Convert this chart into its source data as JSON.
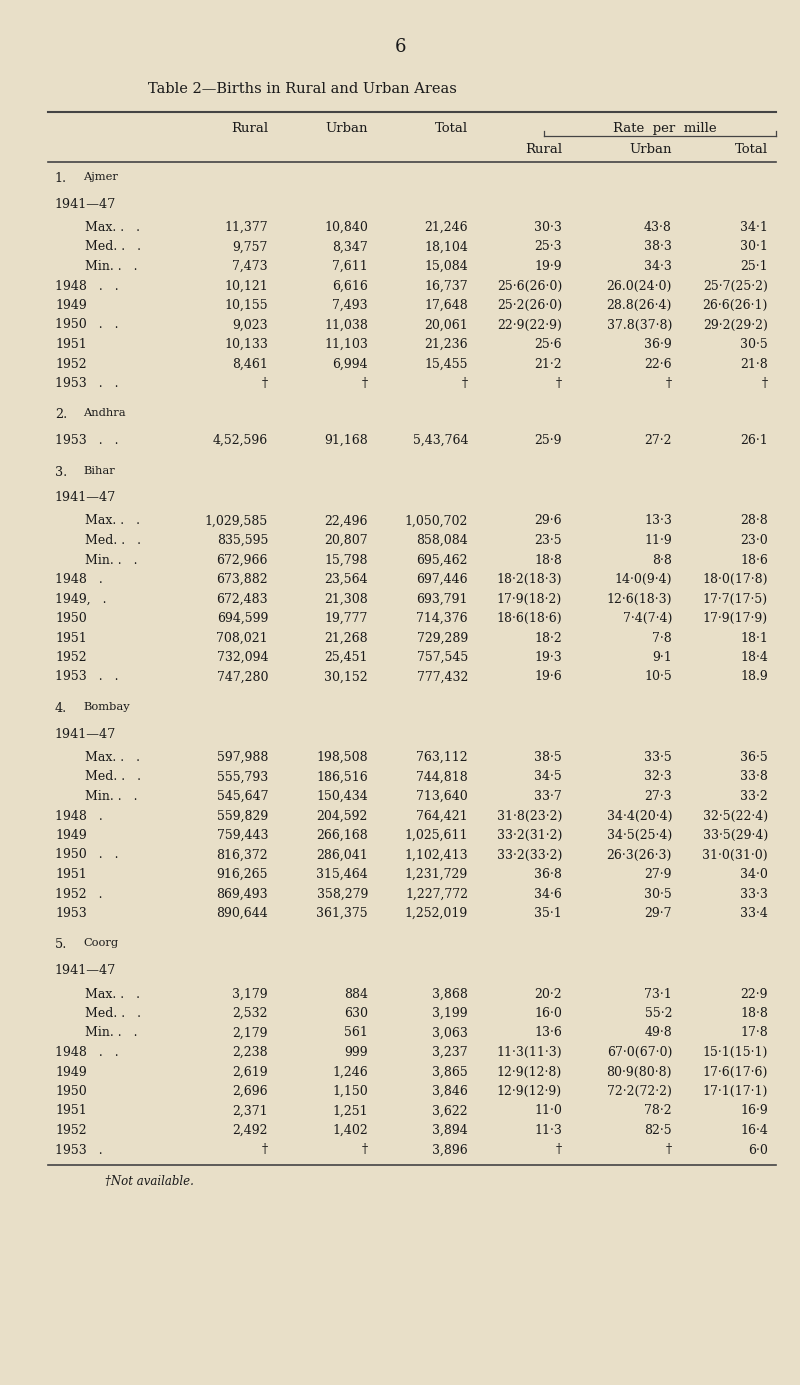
{
  "page_number": "6",
  "title": "Table 2—Births in Rural and Urban Areas",
  "bg_color": "#e8dfc8",
  "text_color": "#1a1a1a",
  "footnote": "†Not available.",
  "rows": [
    {
      "label": "1.  Ajmer",
      "type": "section"
    },
    {
      "label": "1941—47",
      "type": "subsection"
    },
    {
      "label": "Max. .   .",
      "type": "data",
      "indent": 1,
      "rural": "11,377",
      "urban": "10,840",
      "total": "21,246",
      "r_rural": "30·3",
      "r_urban": "43·8",
      "r_total": "34·1"
    },
    {
      "label": "Med. .   .",
      "type": "data",
      "indent": 1,
      "rural": "9,757",
      "urban": "8,347",
      "total": "18,104",
      "r_rural": "25·3",
      "r_urban": "38·3",
      "r_total": "30·1"
    },
    {
      "label": "Min. .   .",
      "type": "data",
      "indent": 1,
      "rural": "7,473",
      "urban": "7,611",
      "total": "15,084",
      "r_rural": "19·9",
      "r_urban": "34·3",
      "r_total": "25·1"
    },
    {
      "label": "1948   .   .",
      "type": "data",
      "indent": 0,
      "rural": "10,121",
      "urban": "6,616",
      "total": "16,737",
      "r_rural": "25·6(26·0)",
      "r_urban": "26.0(24·0)",
      "r_total": "25·7(25·2)"
    },
    {
      "label": "1949",
      "type": "data",
      "indent": 0,
      "rural": "10,155",
      "urban": "7,493",
      "total": "17,648",
      "r_rural": "25·2(26·0)",
      "r_urban": "28.8(26·4)",
      "r_total": "26·6(26·1)"
    },
    {
      "label": "1950   .   .",
      "type": "data",
      "indent": 0,
      "rural": "9,023",
      "urban": "11,038",
      "total": "20,061",
      "r_rural": "22·9(22·9)",
      "r_urban": "37.8(37·8)",
      "r_total": "29·2(29·2)"
    },
    {
      "label": "1951",
      "type": "data",
      "indent": 0,
      "rural": "10,133",
      "urban": "11,103",
      "total": "21,236",
      "r_rural": "25·6",
      "r_urban": "36·9",
      "r_total": "30·5"
    },
    {
      "label": "1952",
      "type": "data",
      "indent": 0,
      "rural": "8,461",
      "urban": "6,994",
      "total": "15,455",
      "r_rural": "21·2",
      "r_urban": "22·6",
      "r_total": "21·8"
    },
    {
      "label": "1953   .   .",
      "type": "data",
      "indent": 0,
      "rural": "†",
      "urban": "†",
      "total": "†",
      "r_rural": "†",
      "r_urban": "†",
      "r_total": "†"
    },
    {
      "label": "2.  Andhra",
      "type": "section"
    },
    {
      "label": "1953   .   .",
      "type": "data",
      "indent": 0,
      "rural": "4,52,596",
      "urban": "91,168",
      "total": "5,43,764",
      "r_rural": "25·9",
      "r_urban": "27·2",
      "r_total": "26·1"
    },
    {
      "label": "3.  Bihar",
      "type": "section"
    },
    {
      "label": "1941—47",
      "type": "subsection"
    },
    {
      "label": "Max. .   .",
      "type": "data",
      "indent": 1,
      "rural": "1,029,585",
      "urban": "22,496",
      "total": "1,050,702",
      "r_rural": "29·6",
      "r_urban": "13·3",
      "r_total": "28·8"
    },
    {
      "label": "Med. .   .",
      "type": "data",
      "indent": 1,
      "rural": "835,595",
      "urban": "20,807",
      "total": "858,084",
      "r_rural": "23·5",
      "r_urban": "11·9",
      "r_total": "23·0"
    },
    {
      "label": "Min. .   .",
      "type": "data",
      "indent": 1,
      "rural": "672,966",
      "urban": "15,798",
      "total": "695,462",
      "r_rural": "18·8",
      "r_urban": "8·8",
      "r_total": "18·6"
    },
    {
      "label": "1948   .",
      "type": "data",
      "indent": 0,
      "rural": "673,882",
      "urban": "23,564",
      "total": "697,446",
      "r_rural": "18·2(18·3)",
      "r_urban": "14·0(9·4)",
      "r_total": "18·0(17·8)"
    },
    {
      "label": "1949,   .",
      "type": "data",
      "indent": 0,
      "rural": "672,483",
      "urban": "21,308",
      "total": "693,791",
      "r_rural": "17·9(18·2)",
      "r_urban": "12·6(18·3)",
      "r_total": "17·7(17·5)"
    },
    {
      "label": "1950",
      "type": "data",
      "indent": 0,
      "rural": "694,599",
      "urban": "19,777",
      "total": "714,376",
      "r_rural": "18·6(18·6)",
      "r_urban": "7·4(7·4)",
      "r_total": "17·9(17·9)"
    },
    {
      "label": "1951",
      "type": "data",
      "indent": 0,
      "rural": "708,021",
      "urban": "21,268",
      "total": "729,289",
      "r_rural": "18·2",
      "r_urban": "7·8",
      "r_total": "18·1"
    },
    {
      "label": "1952",
      "type": "data",
      "indent": 0,
      "rural": "732,094",
      "urban": "25,451",
      "total": "757,545",
      "r_rural": "19·3",
      "r_urban": "9·1",
      "r_total": "18·4"
    },
    {
      "label": "1953   .   .",
      "type": "data",
      "indent": 0,
      "rural": "747,280",
      "urban": "30,152",
      "total": "777,432",
      "r_rural": "19·6",
      "r_urban": "10·5",
      "r_total": "18.9"
    },
    {
      "label": "4.  Bombay",
      "type": "section"
    },
    {
      "label": "1941—47",
      "type": "subsection"
    },
    {
      "label": "Max. .   .",
      "type": "data",
      "indent": 1,
      "rural": "597,988",
      "urban": "198,508",
      "total": "763,112",
      "r_rural": "38·5",
      "r_urban": "33·5",
      "r_total": "36·5"
    },
    {
      "label": "Med. .   .",
      "type": "data",
      "indent": 1,
      "rural": "555,793",
      "urban": "186,516",
      "total": "744,818",
      "r_rural": "34·5",
      "r_urban": "32·3",
      "r_total": "33·8"
    },
    {
      "label": "Min. .   .",
      "type": "data",
      "indent": 1,
      "rural": "545,647",
      "urban": "150,434",
      "total": "713,640",
      "r_rural": "33·7",
      "r_urban": "27·3",
      "r_total": "33·2"
    },
    {
      "label": "1948   .",
      "type": "data",
      "indent": 0,
      "rural": "559,829",
      "urban": "204,592",
      "total": "764,421",
      "r_rural": "31·8(23·2)",
      "r_urban": "34·4(20·4)",
      "r_total": "32·5(22·4)"
    },
    {
      "label": "1949",
      "type": "data",
      "indent": 0,
      "rural": "759,443",
      "urban": "266,168",
      "total": "1,025,611",
      "r_rural": "33·2(31·2)",
      "r_urban": "34·5(25·4)",
      "r_total": "33·5(29·4)"
    },
    {
      "label": "1950   .   .",
      "type": "data",
      "indent": 0,
      "rural": "816,372",
      "urban": "286,041",
      "total": "1,102,413",
      "r_rural": "33·2(33·2)",
      "r_urban": "26·3(26·3)",
      "r_total": "31·0(31·0)"
    },
    {
      "label": "1951",
      "type": "data",
      "indent": 0,
      "rural": "916,265",
      "urban": "315,464",
      "total": "1,231,729",
      "r_rural": "36·8",
      "r_urban": "27·9",
      "r_total": "34·0"
    },
    {
      "label": "1952   .",
      "type": "data",
      "indent": 0,
      "rural": "869,493",
      "urban": "358,279",
      "total": "1,227,772",
      "r_rural": "34·6",
      "r_urban": "30·5",
      "r_total": "33·3"
    },
    {
      "label": "1953",
      "type": "data",
      "indent": 0,
      "rural": "890,644",
      "urban": "361,375",
      "total": "1,252,019",
      "r_rural": "35·1",
      "r_urban": "29·7",
      "r_total": "33·4"
    },
    {
      "label": "5.  Coorg",
      "type": "section"
    },
    {
      "label": "1941—47",
      "type": "subsection"
    },
    {
      "label": "Max. .   .",
      "type": "data",
      "indent": 1,
      "rural": "3,179",
      "urban": "884",
      "total": "3,868",
      "r_rural": "20·2",
      "r_urban": "73·1",
      "r_total": "22·9"
    },
    {
      "label": "Med. .   .",
      "type": "data",
      "indent": 1,
      "rural": "2,532",
      "urban": "630",
      "total": "3,199",
      "r_rural": "16·0",
      "r_urban": "55·2",
      "r_total": "18·8"
    },
    {
      "label": "Min. .   .",
      "type": "data",
      "indent": 1,
      "rural": "2,179",
      "urban": "561",
      "total": "3,063",
      "r_rural": "13·6",
      "r_urban": "49·8",
      "r_total": "17·8"
    },
    {
      "label": "1948   .   .",
      "type": "data",
      "indent": 0,
      "rural": "2,238",
      "urban": "999",
      "total": "3,237",
      "r_rural": "11·3(11·3)",
      "r_urban": "67·0(67·0)",
      "r_total": "15·1(15·1)"
    },
    {
      "label": "1949",
      "type": "data",
      "indent": 0,
      "rural": "2,619",
      "urban": "1,246",
      "total": "3,865",
      "r_rural": "12·9(12·8)",
      "r_urban": "80·9(80·8)",
      "r_total": "17·6(17·6)"
    },
    {
      "label": "1950",
      "type": "data",
      "indent": 0,
      "rural": "2,696",
      "urban": "1,150",
      "total": "3,846",
      "r_rural": "12·9(12·9)",
      "r_urban": "72·2(72·2)",
      "r_total": "17·1(17·1)"
    },
    {
      "label": "1951",
      "type": "data",
      "indent": 0,
      "rural": "2,371",
      "urban": "1,251",
      "total": "3,622",
      "r_rural": "11·0",
      "r_urban": "78·2",
      "r_total": "16·9"
    },
    {
      "label": "1952",
      "type": "data",
      "indent": 0,
      "rural": "2,492",
      "urban": "1,402",
      "total": "3,894",
      "r_rural": "11·3",
      "r_urban": "82·5",
      "r_total": "16·4"
    },
    {
      "label": "1953   .",
      "type": "data",
      "indent": 0,
      "rural": "†",
      "urban": "†",
      "total": "3,896",
      "r_rural": "†",
      "r_urban": "†",
      "r_total": "6·0"
    }
  ]
}
